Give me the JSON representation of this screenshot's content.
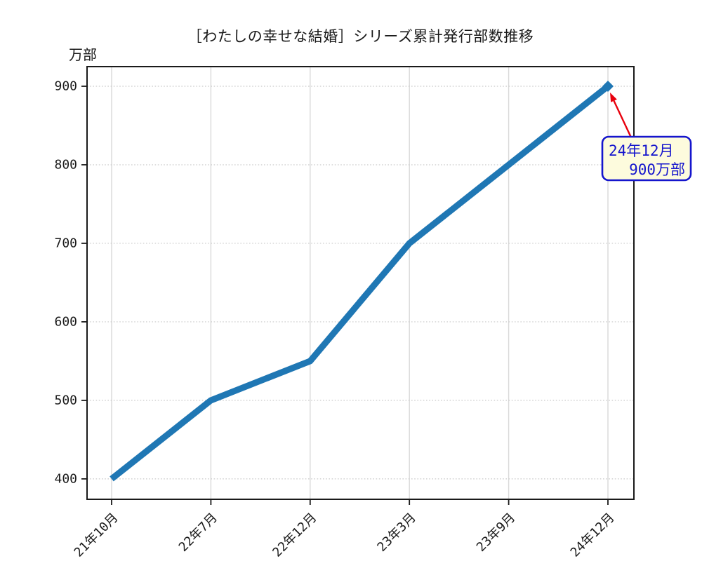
{
  "chart_data": {
    "type": "line",
    "title": "［わたしの幸せな結婚］シリーズ累計発行部数推移",
    "ylabel": "万部",
    "xlabel": "",
    "categories": [
      "21年10月",
      "22年7月",
      "22年12月",
      "23年3月",
      "23年9月",
      "24年12月"
    ],
    "values": [
      400,
      500,
      550,
      700,
      800,
      900
    ],
    "yticks": [
      400,
      500,
      600,
      700,
      800,
      900
    ],
    "ylim": [
      374,
      925
    ],
    "grid": true,
    "legend": false,
    "series_color": "#1f77b4",
    "annotation": {
      "line1": "24年12月",
      "line2": "900万部",
      "target_category": "24年12月",
      "target_value": 900,
      "box_fill": "#fdfbdd",
      "box_border": "#1515cd",
      "text_color": "#1515cd",
      "arrow_color": "#e8000d"
    }
  }
}
